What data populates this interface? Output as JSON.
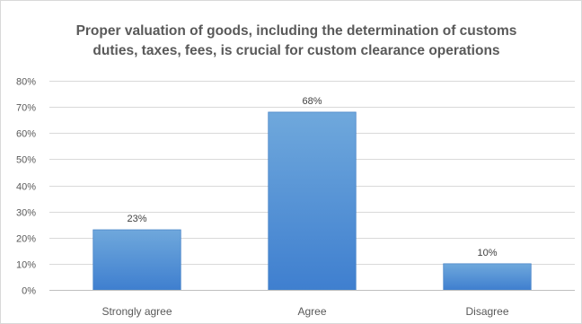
{
  "chart_data": {
    "type": "bar",
    "title_lines": [
      "Proper valuation of goods, including the determination of customs",
      "duties, taxes, fees, is crucial for custom clearance operations"
    ],
    "categories": [
      "Strongly agree",
      "Agree",
      "Disagree"
    ],
    "values": [
      23,
      68,
      10
    ],
    "data_labels": [
      "23%",
      "68%",
      "10%"
    ],
    "ylim": [
      0,
      80
    ],
    "y_ticks": [
      0,
      10,
      20,
      30,
      40,
      50,
      60,
      70,
      80
    ],
    "y_tick_labels": [
      "0%",
      "10%",
      "20%",
      "30%",
      "40%",
      "50%",
      "60%",
      "70%",
      "80%"
    ],
    "xlabel": "",
    "ylabel": "",
    "grid": true,
    "legend": "none",
    "colors": {
      "bar_top": "#6fa8dc",
      "bar_bottom": "#3f7fcf",
      "bar_edge": "#4a86c8",
      "grid": "#d9d9d9",
      "axis": "#bfbfbf"
    }
  }
}
